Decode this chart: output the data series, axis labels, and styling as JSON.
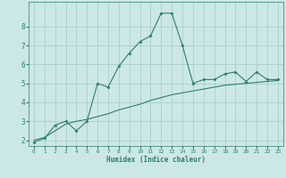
{
  "xlabel": "Humidex (Indice chaleur)",
  "x": [
    0,
    1,
    2,
    3,
    4,
    5,
    6,
    7,
    8,
    9,
    10,
    11,
    12,
    13,
    14,
    15,
    16,
    17,
    18,
    19,
    20,
    21,
    22,
    23
  ],
  "y_line": [
    1.9,
    2.1,
    2.8,
    3.0,
    2.5,
    3.0,
    5.0,
    4.8,
    5.9,
    6.6,
    7.2,
    7.5,
    8.7,
    8.7,
    7.0,
    5.0,
    5.2,
    5.2,
    5.5,
    5.6,
    5.1,
    5.6,
    5.2,
    5.2
  ],
  "y_trend": [
    2.0,
    2.15,
    2.5,
    2.85,
    3.0,
    3.1,
    3.25,
    3.4,
    3.6,
    3.75,
    3.9,
    4.1,
    4.25,
    4.4,
    4.5,
    4.6,
    4.7,
    4.8,
    4.9,
    4.95,
    5.0,
    5.05,
    5.1,
    5.15
  ],
  "line_color": "#2e7d6e",
  "bg_color": "#cce8e6",
  "grid_color": "#aacfcc",
  "ylim": [
    1.7,
    9.3
  ],
  "xlim": [
    -0.5,
    23.5
  ],
  "yticks": [
    2,
    3,
    4,
    5,
    6,
    7,
    8
  ],
  "xticks": [
    0,
    1,
    2,
    3,
    4,
    5,
    6,
    7,
    8,
    9,
    10,
    11,
    12,
    13,
    14,
    15,
    16,
    17,
    18,
    19,
    20,
    21,
    22,
    23
  ]
}
